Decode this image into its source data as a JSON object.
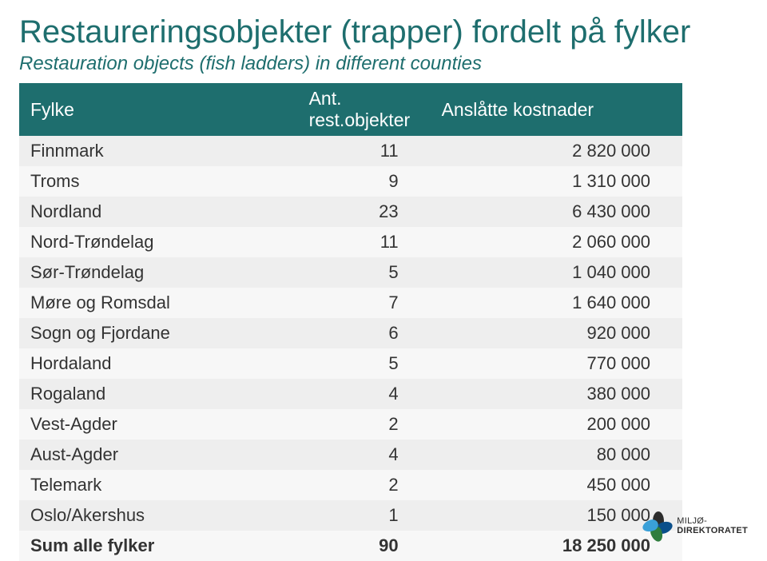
{
  "title": {
    "text": "Restaureringsobjekter (trapper) fordelt på fylker",
    "color": "#1e6e6e"
  },
  "subtitle": {
    "text": "Restauration objects (fish ladders) in different counties",
    "color": "#1e6e6e"
  },
  "table": {
    "header_bg": "#1e6e6e",
    "header_color": "#ffffff",
    "row_bg_odd": "#eeeeee",
    "row_bg_even": "#f7f7f7",
    "columns": [
      "Fylke",
      "Ant. rest.objekter",
      "Anslåtte kostnader"
    ],
    "rows": [
      [
        "Finnmark",
        "11",
        "2 820 000"
      ],
      [
        "Troms",
        "9",
        "1 310 000"
      ],
      [
        "Nordland",
        "23",
        "6 430 000"
      ],
      [
        "Nord-Trøndelag",
        "11",
        "2 060 000"
      ],
      [
        "Sør-Trøndelag",
        "5",
        "1 040 000"
      ],
      [
        "Møre og Romsdal",
        "7",
        "1 640 000"
      ],
      [
        "Sogn og Fjordane",
        "6",
        "920 000"
      ],
      [
        "Hordaland",
        "5",
        "770 000"
      ],
      [
        "Rogaland",
        "4",
        "380 000"
      ],
      [
        "Vest-Agder",
        "2",
        "200 000"
      ],
      [
        "Aust-Agder",
        "4",
        "80 000"
      ],
      [
        "Telemark",
        "2",
        "450 000"
      ],
      [
        "Oslo/Akershus",
        "1",
        "150 000"
      ]
    ],
    "sum_row": [
      "Sum alle fylker",
      "90",
      "18 250 000"
    ]
  },
  "logo": {
    "line1": "MILJØ-",
    "line2": "DIREKTORATET",
    "petal_colors": [
      "#2c2c2c",
      "#0b4f8a",
      "#2f7d3e",
      "#3aa0d8"
    ]
  }
}
